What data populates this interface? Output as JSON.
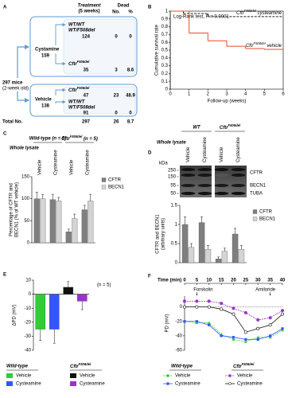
{
  "panel_labels": [
    "A",
    "B",
    "C",
    "D",
    "E",
    "F"
  ],
  "cohort": {
    "treatment": "Treatment",
    "duration": "(5 weeks)",
    "dead": "Dead",
    "count_header": "No.",
    "percent_header": "%",
    "start": "297 mice",
    "start_age": "(2-week old)",
    "arms": [
      {
        "name": "Cystamine",
        "n": 159,
        "groups": [
          {
            "genotype": [
              "WT/WT",
              "WT/F508del"
            ],
            "n": 124,
            "dead": 0,
            "percent": 0
          },
          {
            "genotype": [
              "CftrF508del"
            ],
            "n": 35,
            "dead": 3,
            "percent": 8.6
          }
        ]
      },
      {
        "name": "Vehicle",
        "n": 138,
        "groups": [
          {
            "genotype": [
              "CftrF508del"
            ],
            "n": 47,
            "dead": 23,
            "percent": 48.9
          },
          {
            "genotype": [
              "WT/WT",
              "WT/F508del"
            ],
            "n": 91,
            "dead": 0,
            "percent": 0
          }
        ]
      }
    ],
    "total_label": "Total No.",
    "total_n": 297,
    "total_dead": 26,
    "total_percent": 8.7
  },
  "chart_data": [
    {
      "type": "step",
      "title": "Log-Rank test, P = 0.0001",
      "x_label": "Follow-up (weeks)",
      "y_label": "Cumulative survival rate",
      "xlim": [
        0,
        6
      ],
      "xticks": [
        0,
        1,
        2,
        3,
        4,
        5,
        6
      ],
      "ylim": [
        0,
        1
      ],
      "yticks": [
        0,
        0.1,
        0.2,
        0.3,
        0.4,
        0.5,
        0.6,
        0.7,
        0.8,
        0.9,
        1
      ],
      "series": [
        {
          "name": "CftrF508del cysteamine",
          "color": "#222222",
          "dash": true,
          "x": [
            0,
            0.7,
            2
          ],
          "values": [
            1,
            0.97,
            0.93
          ]
        },
        {
          "name": "CftrF508del vehicle",
          "color": "#e8492f",
          "dash": false,
          "x": [
            0,
            1,
            2,
            3,
            4,
            5
          ],
          "values": [
            1,
            0.72,
            0.62,
            0.55,
            0.52,
            0.51
          ]
        }
      ]
    },
    {
      "type": "bar",
      "subtitle": "Whole lysate",
      "groups": [
        "Wild-type (n = 5)",
        "CftrF508del (n = 5)"
      ],
      "categories": [
        "Vehicle",
        "Cysteamine",
        "Vehicle",
        "Cysteamine"
      ],
      "y_label": [
        "Percentage of CFTR and",
        "BECN1 (% of WT vehicle)"
      ],
      "ylim": [
        0,
        150
      ],
      "yticks": [
        0,
        50,
        100,
        150
      ],
      "series": [
        {
          "name": "CFTR",
          "color": "#7f7f7f",
          "values": [
            100,
            98,
            25,
            75
          ],
          "errors": [
            15,
            12,
            6,
            10
          ]
        },
        {
          "name": "BECN1",
          "color": "#d4d4d4",
          "values": [
            100,
            95,
            55,
            95
          ],
          "errors": [
            10,
            8,
            10,
            15
          ]
        }
      ]
    },
    {
      "type": "bar",
      "subtitle": "Whole lysate",
      "groups": [
        "WT",
        "CftrF508del"
      ],
      "categories": [
        "Vehicle",
        "Cysteamine",
        "Vehicle",
        "Cysteamine"
      ],
      "blot": {
        "unit": "kDa",
        "markers": [
          "250",
          "150",
          "55",
          "50"
        ],
        "bands": [
          "CFTR",
          "BECN1",
          "TUBA"
        ]
      },
      "y_label": [
        "CFTR and BECN1",
        "(arbitrary units)"
      ],
      "ylim": [
        0,
        1.5
      ],
      "yticks": [
        0,
        0.5,
        1,
        1.5
      ],
      "series": [
        {
          "name": "CFTR",
          "color": "#7f7f7f",
          "values": [
            1.0,
            1.05,
            0.1,
            0.75
          ],
          "errors": [
            0.2,
            0.15,
            0.05,
            0.15
          ]
        },
        {
          "name": "BECN1",
          "color": "#d4d4d4",
          "values": [
            0.4,
            0.35,
            0.3,
            0.35
          ],
          "errors": [
            0.1,
            0.1,
            0.08,
            0.1
          ]
        }
      ]
    },
    {
      "type": "bar",
      "note": "(n = 5)",
      "y_label": "ΔPD (mV)",
      "groups": [
        "Wild-type",
        "CftrF508del"
      ],
      "categories": [
        "Vehicle",
        "Cysteamine",
        "Vehicle",
        "Cysteamine"
      ],
      "ylim": [
        -40,
        10
      ],
      "yticks": [
        -40,
        -30,
        -20,
        -10,
        0,
        10
      ],
      "series": [
        {
          "colors": [
            "#33cc33",
            "#3355ff",
            "#111111",
            "#9933cc"
          ],
          "values": [
            -25,
            -25,
            5,
            -5
          ],
          "errors": [
            8,
            10,
            4,
            6
          ]
        }
      ]
    },
    {
      "type": "line",
      "x_label": "Time (min)",
      "y_label": "PD (mV)",
      "groups": [
        "Wild-type",
        "CftrF508del"
      ],
      "annotations": [
        {
          "text": "Forskolin",
          "x": 5
        },
        {
          "text": "Amiloride",
          "x": 35
        }
      ],
      "x": [
        0,
        5,
        10,
        15,
        20,
        25,
        30,
        35,
        40
      ],
      "xlim": [
        0,
        40
      ],
      "xticks": [
        0,
        5,
        10,
        15,
        20,
        25,
        30,
        35,
        40
      ],
      "ylim": [
        -60,
        15
      ],
      "yticks": [
        -60,
        -40,
        -20,
        0
      ],
      "series": [
        {
          "name": "Vehicle",
          "color": "#33cc33",
          "marker": "triangle",
          "dash": true,
          "values": [
            -20,
            -22,
            -22,
            -38,
            -45,
            -48,
            -42,
            -42,
            -32
          ]
        },
        {
          "name": "Cysteamine",
          "color": "#3355ff",
          "marker": "square",
          "dash": false,
          "values": [
            -20,
            -20,
            -25,
            -40,
            -42,
            -45,
            -45,
            -40,
            -30
          ]
        },
        {
          "name": "Vehicle",
          "color": "#9933cc",
          "marker": "circle",
          "dash": true,
          "values": [
            8,
            8,
            8,
            5,
            -2,
            -8,
            -18,
            -15,
            -5
          ]
        },
        {
          "name": "Cysteamine",
          "color": "#111111",
          "marker": "open-circle",
          "dash": false,
          "values": [
            0,
            0,
            0,
            -3,
            -10,
            -35,
            -30,
            -25,
            -10
          ]
        }
      ]
    }
  ]
}
